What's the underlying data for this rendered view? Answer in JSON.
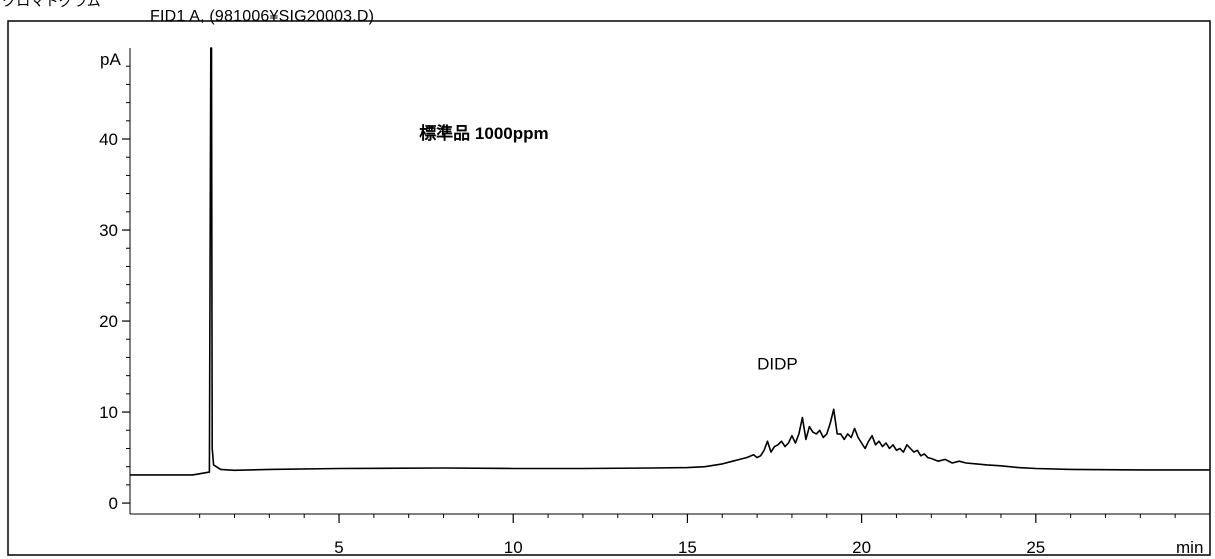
{
  "header": {
    "label": "クロマトグラム",
    "signal_title": "FID1 A, (981006¥SIG20003.D)"
  },
  "chart_data": {
    "type": "line",
    "title": "FID1 A, (981006¥SIG20003.D)",
    "ylabel": "pA",
    "xlabel": "min",
    "xlim": [
      -1.0,
      30.0
    ],
    "ylim": [
      -1.2,
      50.0
    ],
    "x_ticks": [
      5,
      10,
      15,
      20,
      25
    ],
    "y_ticks": [
      0,
      10,
      20,
      30,
      40
    ],
    "grid": false,
    "series": [
      {
        "x": [
          -1.0,
          0.8,
          1.28,
          1.32,
          1.34,
          1.36,
          1.4,
          1.6,
          2.0,
          3,
          5,
          8,
          10,
          12,
          14,
          15,
          15.5,
          16.0,
          16.3,
          16.5,
          16.7,
          16.9,
          17.0,
          17.1,
          17.2,
          17.3,
          17.4,
          17.5,
          17.6,
          17.7,
          17.8,
          17.9,
          18.0,
          18.1,
          18.2,
          18.3,
          18.4,
          18.5,
          18.6,
          18.7,
          18.8,
          18.9,
          19.0,
          19.1,
          19.2,
          19.3,
          19.4,
          19.5,
          19.6,
          19.7,
          19.8,
          19.9,
          20.0,
          20.1,
          20.2,
          20.3,
          20.4,
          20.5,
          20.6,
          20.7,
          20.8,
          20.9,
          21.0,
          21.1,
          21.2,
          21.3,
          21.4,
          21.5,
          21.6,
          21.7,
          21.8,
          21.9,
          22.0,
          22.2,
          22.4,
          22.6,
          22.8,
          23.0,
          23.3,
          23.6,
          24.0,
          24.5,
          25.0,
          26,
          28,
          30
        ],
        "y": [
          3.1,
          3.1,
          3.4,
          50.0,
          50.0,
          6.0,
          4.2,
          3.7,
          3.6,
          3.7,
          3.8,
          3.85,
          3.8,
          3.8,
          3.85,
          3.9,
          4.0,
          4.3,
          4.6,
          4.8,
          5.0,
          5.3,
          5.0,
          5.2,
          5.8,
          6.8,
          5.6,
          6.2,
          6.4,
          6.8,
          6.2,
          6.6,
          7.4,
          6.6,
          7.6,
          9.4,
          7.0,
          8.4,
          7.8,
          7.6,
          8.0,
          7.2,
          7.6,
          8.8,
          10.3,
          7.6,
          7.6,
          7.0,
          7.6,
          7.2,
          8.2,
          7.2,
          6.6,
          6.0,
          6.8,
          7.4,
          6.4,
          6.8,
          6.2,
          6.6,
          6.0,
          6.4,
          5.8,
          6.0,
          5.6,
          6.4,
          6.0,
          5.6,
          5.8,
          5.2,
          5.4,
          5.0,
          4.9,
          4.6,
          4.8,
          4.4,
          4.6,
          4.4,
          4.3,
          4.2,
          4.1,
          3.9,
          3.8,
          3.7,
          3.65,
          3.65
        ]
      }
    ],
    "annotations": [
      {
        "text": "標準品 1000ppm",
        "x": 7.3,
        "y": 40
      },
      {
        "text": "DIDP",
        "x": 17.0,
        "y": 14.7
      }
    ]
  }
}
